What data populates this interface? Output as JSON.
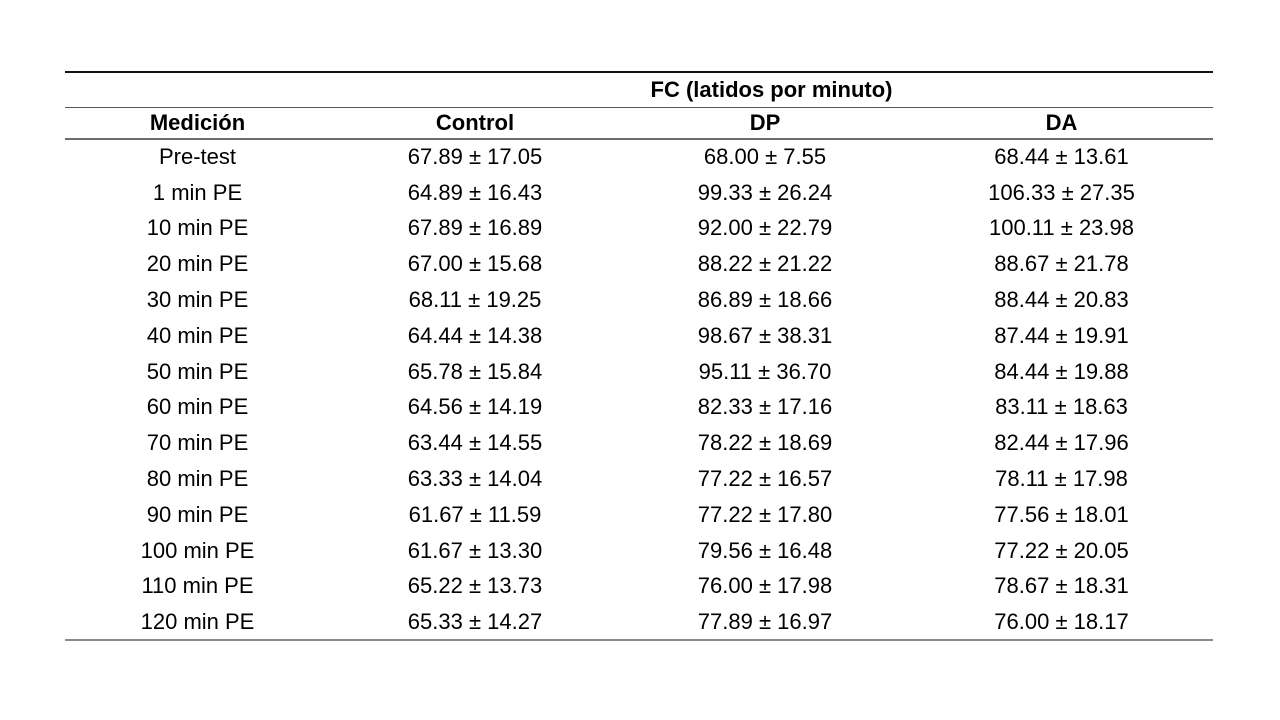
{
  "table": {
    "span_header": "FC (latidos por minuto)",
    "columns": [
      "Medición",
      "Control",
      "DP",
      "DA"
    ],
    "rows": [
      {
        "label": "Pre-test",
        "control": "67.89 ± 17.05",
        "dp": "68.00 ± 7.55",
        "da": "68.44 ± 13.61"
      },
      {
        "label": "1 min PE",
        "control": "64.89 ± 16.43",
        "dp": "99.33 ± 26.24",
        "da": "106.33 ± 27.35"
      },
      {
        "label": "10 min PE",
        "control": "67.89 ± 16.89",
        "dp": "92.00 ± 22.79",
        "da": "100.11 ± 23.98"
      },
      {
        "label": "20 min PE",
        "control": "67.00 ± 15.68",
        "dp": "88.22 ± 21.22",
        "da": "88.67 ± 21.78"
      },
      {
        "label": "30 min PE",
        "control": "68.11 ± 19.25",
        "dp": "86.89 ± 18.66",
        "da": "88.44 ± 20.83"
      },
      {
        "label": "40 min PE",
        "control": "64.44 ± 14.38",
        "dp": "98.67 ± 38.31",
        "da": "87.44 ± 19.91"
      },
      {
        "label": "50 min PE",
        "control": "65.78 ± 15.84",
        "dp": "95.11 ± 36.70",
        "da": "84.44 ± 19.88"
      },
      {
        "label": "60 min PE",
        "control": "64.56 ± 14.19",
        "dp": "82.33 ± 17.16",
        "da": "83.11 ± 18.63"
      },
      {
        "label": "70 min PE",
        "control": "63.44 ± 14.55",
        "dp": "78.22 ± 18.69",
        "da": "82.44 ± 17.96"
      },
      {
        "label": "80 min PE",
        "control": "63.33 ± 14.04",
        "dp": "77.22 ± 16.57",
        "da": "78.11 ± 17.98"
      },
      {
        "label": "90 min PE",
        "control": "61.67 ± 11.59",
        "dp": "77.22 ± 17.80",
        "da": "77.56 ± 18.01"
      },
      {
        "label": "100 min PE",
        "control": "61.67 ± 13.30",
        "dp": "79.56 ± 16.48",
        "da": "77.22 ± 20.05"
      },
      {
        "label": "110 min PE",
        "control": "65.22 ± 13.73",
        "dp": "76.00 ± 17.98",
        "da": "78.67 ± 18.31"
      },
      {
        "label": "120 min PE",
        "control": "65.33 ± 14.27",
        "dp": "77.89 ± 16.97",
        "da": "76.00 ± 18.17"
      }
    ]
  },
  "colors": {
    "background": "#ffffff",
    "text": "#000000",
    "rule_top": "#121212",
    "rule_inner": "#595959",
    "rule_bottom": "#8a8a8a"
  }
}
